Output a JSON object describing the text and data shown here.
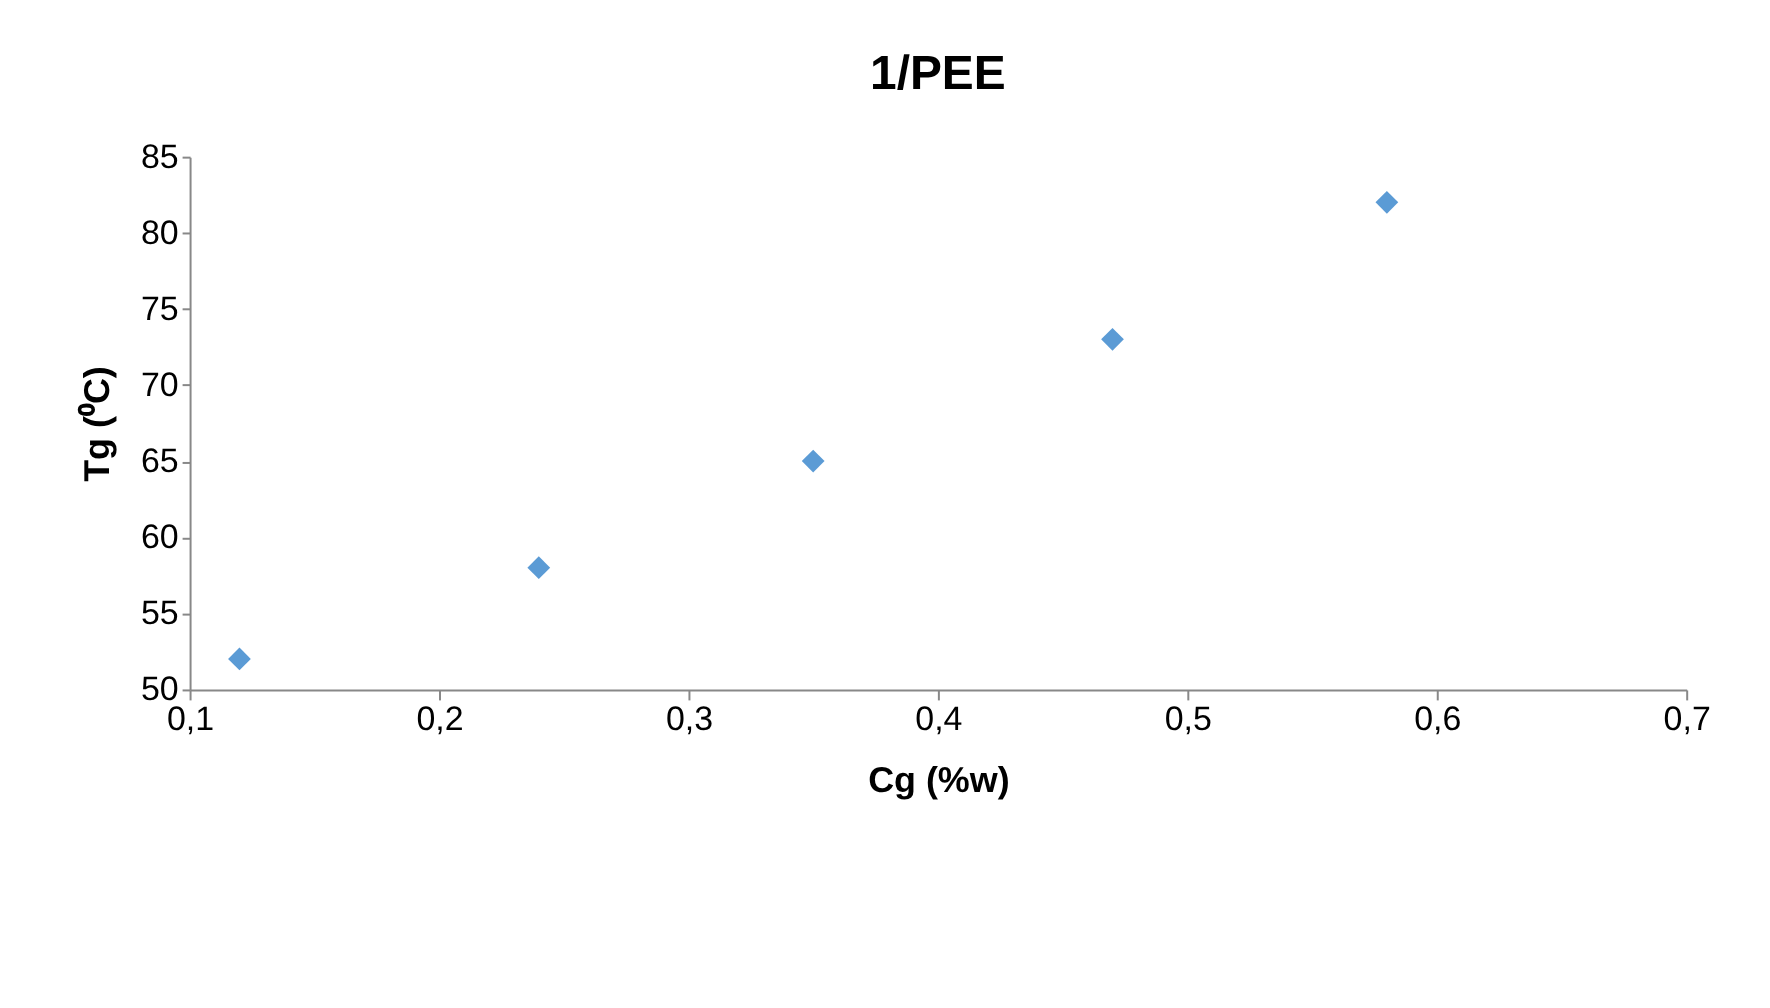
{
  "chart_data": {
    "type": "scatter",
    "title": "1/PEE",
    "xlabel": "Cg (%w)",
    "ylabel": "Tg (⁰C)",
    "x": [
      0.12,
      0.24,
      0.35,
      0.47,
      0.58
    ],
    "series": [
      {
        "color": "#5b9bd5",
        "values": [
          52,
          58,
          65,
          73,
          82
        ]
      }
    ],
    "xlim": [
      0.1,
      0.7
    ],
    "xticks": [
      {
        "value": 0.1,
        "label": "0,1"
      },
      {
        "value": 0.2,
        "label": "0,2"
      },
      {
        "value": 0.3,
        "label": "0,3"
      },
      {
        "value": 0.4,
        "label": "0,4"
      },
      {
        "value": 0.5,
        "label": "0,5"
      },
      {
        "value": 0.6,
        "label": "0,6"
      },
      {
        "value": 0.7,
        "label": "0,7"
      }
    ],
    "ylim": [
      50,
      85
    ],
    "yticks": [
      50,
      55,
      60,
      65,
      70,
      75,
      80,
      85
    ],
    "marker": "diamond",
    "grid": false
  }
}
